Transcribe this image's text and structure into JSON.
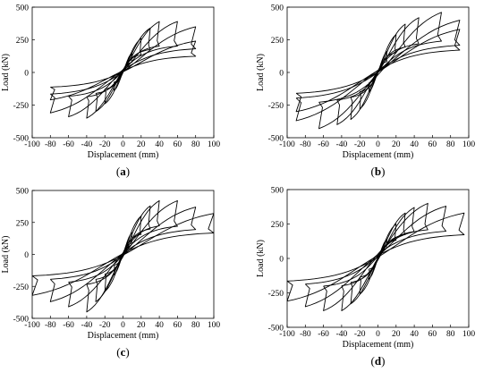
{
  "chart_data": [
    {
      "type": "line",
      "panel_label": "(a)",
      "panel_letter": "a",
      "xlabel": "Displacement (mm)",
      "ylabel": "Load (kN)",
      "xlim": [
        -100,
        100
      ],
      "ylim": [
        -500,
        500
      ],
      "xticks": [
        -100,
        -80,
        -60,
        -40,
        -20,
        0,
        20,
        40,
        60,
        80,
        100
      ],
      "yticks": [
        -500,
        -250,
        0,
        250,
        500
      ],
      "legend": "none",
      "grid": false,
      "cycles": [
        {
          "d_pos": 10,
          "f_pos": 150,
          "d_neg": -10,
          "f_neg": -140
        },
        {
          "d_pos": 20,
          "f_pos": 260,
          "d_neg": -20,
          "f_neg": -240
        },
        {
          "d_pos": 30,
          "f_pos": 340,
          "d_neg": -30,
          "f_neg": -300
        },
        {
          "d_pos": 40,
          "f_pos": 390,
          "d_neg": -40,
          "f_neg": -350
        },
        {
          "d_pos": 60,
          "f_pos": 390,
          "d_neg": -60,
          "f_neg": -340
        },
        {
          "d_pos": 80,
          "f_pos": 350,
          "d_neg": -80,
          "f_neg": -310
        },
        {
          "d_pos": 80,
          "f_pos": 240,
          "d_neg": -80,
          "f_neg": -210
        }
      ]
    },
    {
      "type": "line",
      "panel_label": "(b)",
      "panel_letter": "b",
      "xlabel": "Displacement (mm)",
      "ylabel": "Load (kN)",
      "xlim": [
        -100,
        100
      ],
      "ylim": [
        -500,
        500
      ],
      "xticks": [
        -100,
        -80,
        -60,
        -40,
        -20,
        0,
        20,
        40,
        60,
        80,
        100
      ],
      "yticks": [
        -500,
        -250,
        0,
        250,
        500
      ],
      "legend": "none",
      "grid": false,
      "cycles": [
        {
          "d_pos": 10,
          "f_pos": 160,
          "d_neg": -10,
          "f_neg": -150
        },
        {
          "d_pos": 20,
          "f_pos": 290,
          "d_neg": -20,
          "f_neg": -280
        },
        {
          "d_pos": 30,
          "f_pos": 370,
          "d_neg": -30,
          "f_neg": -360
        },
        {
          "d_pos": 45,
          "f_pos": 420,
          "d_neg": -45,
          "f_neg": -400
        },
        {
          "d_pos": 70,
          "f_pos": 460,
          "d_neg": -65,
          "f_neg": -430
        },
        {
          "d_pos": 90,
          "f_pos": 400,
          "d_neg": -90,
          "f_neg": -370
        },
        {
          "d_pos": 90,
          "f_pos": 330,
          "d_neg": -90,
          "f_neg": -300
        }
      ]
    },
    {
      "type": "line",
      "panel_label": "(c)",
      "panel_letter": "c",
      "xlabel": "Displacement (mm)",
      "ylabel": "Load (kN)",
      "xlim": [
        -100,
        100
      ],
      "ylim": [
        -500,
        500
      ],
      "xticks": [
        -100,
        -80,
        -60,
        -40,
        -20,
        0,
        20,
        40,
        60,
        80,
        100
      ],
      "yticks": [
        -500,
        -250,
        0,
        250,
        500
      ],
      "legend": "none",
      "grid": false,
      "cycles": [
        {
          "d_pos": 10,
          "f_pos": 170,
          "d_neg": -10,
          "f_neg": -160
        },
        {
          "d_pos": 20,
          "f_pos": 300,
          "d_neg": -20,
          "f_neg": -290
        },
        {
          "d_pos": 30,
          "f_pos": 380,
          "d_neg": -30,
          "f_neg": -370
        },
        {
          "d_pos": 40,
          "f_pos": 420,
          "d_neg": -40,
          "f_neg": -450
        },
        {
          "d_pos": 60,
          "f_pos": 420,
          "d_neg": -60,
          "f_neg": -410
        },
        {
          "d_pos": 80,
          "f_pos": 370,
          "d_neg": -80,
          "f_neg": -370
        },
        {
          "d_pos": 100,
          "f_pos": 320,
          "d_neg": -100,
          "f_neg": -320
        }
      ]
    },
    {
      "type": "line",
      "panel_label": "(d)",
      "panel_letter": "d",
      "xlabel": "Displacement (mm)",
      "ylabel": "Load (kN)",
      "xlim": [
        -100,
        100
      ],
      "ylim": [
        -500,
        500
      ],
      "xticks": [
        -100,
        -80,
        -60,
        -40,
        -20,
        0,
        20,
        40,
        60,
        80,
        100
      ],
      "yticks": [
        -500,
        -250,
        0,
        250,
        500
      ],
      "legend": "none",
      "grid": false,
      "cycles": [
        {
          "d_pos": 10,
          "f_pos": 140,
          "d_neg": -10,
          "f_neg": -150
        },
        {
          "d_pos": 20,
          "f_pos": 250,
          "d_neg": -20,
          "f_neg": -260
        },
        {
          "d_pos": 30,
          "f_pos": 330,
          "d_neg": -30,
          "f_neg": -330
        },
        {
          "d_pos": 40,
          "f_pos": 370,
          "d_neg": -40,
          "f_neg": -380
        },
        {
          "d_pos": 55,
          "f_pos": 400,
          "d_neg": -60,
          "f_neg": -380
        },
        {
          "d_pos": 75,
          "f_pos": 380,
          "d_neg": -80,
          "f_neg": -350
        },
        {
          "d_pos": 95,
          "f_pos": 330,
          "d_neg": -100,
          "f_neg": -310
        }
      ]
    }
  ]
}
